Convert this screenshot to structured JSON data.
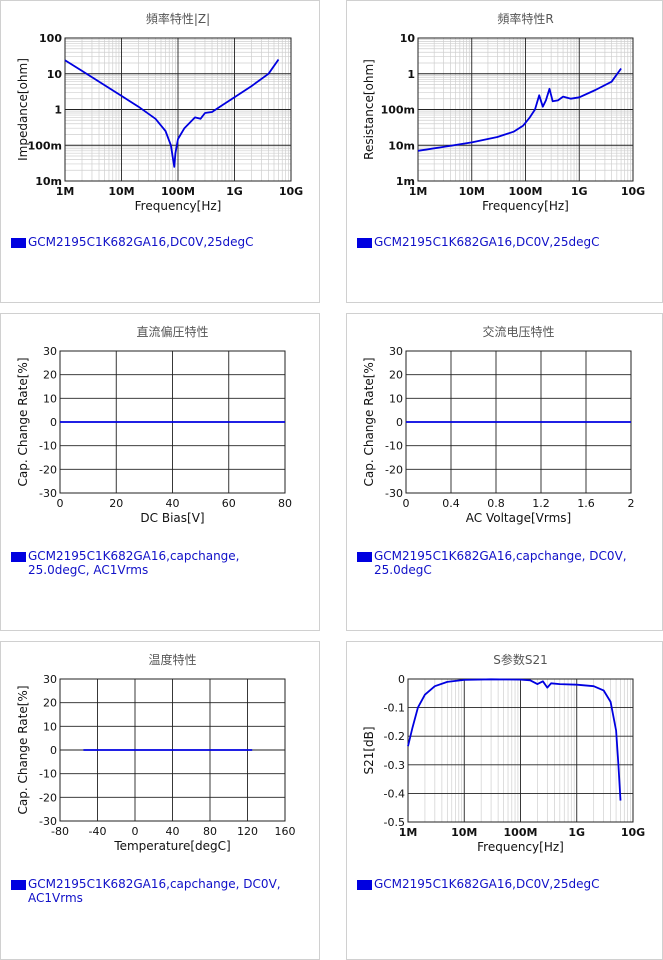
{
  "accent_color": "#0000e0",
  "chart_data": [
    {
      "id": "impedance",
      "type": "line",
      "title": "頻率特性|Z|",
      "xlabel": "Frequency[Hz]",
      "ylabel": "Impedance[ohm]",
      "x_scale": "log",
      "y_scale": "log",
      "xlim": [
        1000000,
        10000000000
      ],
      "ylim": [
        0.01,
        100
      ],
      "x_ticks": [
        "1M",
        "10M",
        "100M",
        "1G",
        "10G"
      ],
      "y_ticks": [
        "10m",
        "100m",
        "1",
        "10",
        "100"
      ],
      "grid": true,
      "series": [
        {
          "name": "GCM2195C1K682GA16,DC0V,25degC",
          "color": "#0000e0",
          "x": [
            1000000,
            2000000,
            5000000,
            10000000,
            20000000,
            40000000,
            60000000,
            75000000,
            82000000,
            86000000,
            90000000,
            100000000,
            130000000,
            200000000,
            250000000,
            300000000,
            400000000,
            600000000,
            1000000000,
            2000000000,
            4000000000,
            6000000000
          ],
          "y": [
            24,
            12,
            4.8,
            2.4,
            1.2,
            0.55,
            0.25,
            0.1,
            0.04,
            0.025,
            0.06,
            0.15,
            0.3,
            0.6,
            0.55,
            0.8,
            0.85,
            1.3,
            2.2,
            4.5,
            10,
            25
          ]
        }
      ]
    },
    {
      "id": "resistance",
      "type": "line",
      "title": "頻率特性R",
      "xlabel": "Frequency[Hz]",
      "ylabel": "Resistance[ohm]",
      "x_scale": "log",
      "y_scale": "log",
      "xlim": [
        1000000,
        10000000000
      ],
      "ylim": [
        0.001,
        10
      ],
      "x_ticks": [
        "1M",
        "10M",
        "100M",
        "1G",
        "10G"
      ],
      "y_ticks": [
        "1m",
        "10m",
        "100m",
        "1",
        "10"
      ],
      "grid": true,
      "series": [
        {
          "name": "GCM2195C1K682GA16,DC0V,25degC",
          "color": "#0000e0",
          "x": [
            1000000,
            3000000,
            10000000,
            30000000,
            60000000,
            90000000,
            120000000,
            150000000,
            180000000,
            210000000,
            240000000,
            280000000,
            320000000,
            400000000,
            500000000,
            700000000,
            1000000000,
            2000000000,
            4000000000,
            6000000000
          ],
          "y": [
            0.007,
            0.009,
            0.012,
            0.017,
            0.024,
            0.035,
            0.06,
            0.1,
            0.25,
            0.12,
            0.18,
            0.38,
            0.17,
            0.18,
            0.23,
            0.2,
            0.22,
            0.35,
            0.6,
            1.4
          ]
        }
      ]
    },
    {
      "id": "dc-bias",
      "type": "line",
      "title": "直流偏圧特性",
      "xlabel": "DC Bias[V]",
      "ylabel": "Cap. Change Rate[%]",
      "xlim": [
        0,
        80
      ],
      "ylim": [
        -30,
        30
      ],
      "x_ticks": [
        "0",
        "20",
        "40",
        "60",
        "80"
      ],
      "y_ticks": [
        "30",
        "20",
        "10",
        "0",
        "-10",
        "-20",
        "-30"
      ],
      "grid": true,
      "series": [
        {
          "name": "GCM2195C1K682GA16,capchange, 25.0degC, AC1Vrms",
          "color": "#0000e0",
          "x": [
            0,
            20,
            40,
            60,
            80
          ],
          "y": [
            0,
            0,
            0,
            0,
            0
          ]
        }
      ]
    },
    {
      "id": "ac-voltage",
      "type": "line",
      "title": "交流电压特性",
      "xlabel": "AC Voltage[Vrms]",
      "ylabel": "Cap. Change Rate[%]",
      "xlim": [
        0,
        2
      ],
      "ylim": [
        -30,
        30
      ],
      "x_ticks": [
        "0",
        "0.4",
        "0.8",
        "1.2",
        "1.6",
        "2"
      ],
      "y_ticks": [
        "30",
        "20",
        "10",
        "0",
        "-10",
        "-20",
        "-30"
      ],
      "grid": true,
      "series": [
        {
          "name": "GCM2195C1K682GA16,capchange, DC0V, 25.0degC",
          "color": "#0000e0",
          "x": [
            0,
            0.5,
            1,
            1.5,
            2
          ],
          "y": [
            0,
            0,
            0,
            0,
            0
          ]
        }
      ]
    },
    {
      "id": "temperature",
      "type": "line",
      "title": "温度特性",
      "xlabel": "Temperature[degC]",
      "ylabel": "Cap. Change Rate[%]",
      "xlim": [
        -80,
        160
      ],
      "ylim": [
        -30,
        30
      ],
      "x_ticks": [
        "-80",
        "-40",
        "0",
        "40",
        "80",
        "120",
        "160"
      ],
      "y_ticks": [
        "30",
        "20",
        "10",
        "0",
        "-10",
        "-20",
        "-30"
      ],
      "grid": true,
      "series": [
        {
          "name": "GCM2195C1K682GA16,capchange, DC0V, AC1Vrms",
          "color": "#0000e0",
          "x": [
            -55,
            -25,
            0,
            25,
            55,
            85,
            125
          ],
          "y": [
            0,
            0,
            0,
            0,
            0,
            0,
            0
          ]
        }
      ]
    },
    {
      "id": "s21",
      "type": "line",
      "title": "S参数S21",
      "xlabel": "Frequency[Hz]",
      "ylabel": "S21[dB]",
      "x_scale": "log",
      "xlim": [
        1000000,
        10000000000
      ],
      "ylim": [
        -0.5,
        0
      ],
      "x_ticks": [
        "1M",
        "10M",
        "100M",
        "1G",
        "10G"
      ],
      "y_ticks": [
        "0",
        "-0.1",
        "-0.2",
        "-0.3",
        "-0.4",
        "-0.5"
      ],
      "grid": true,
      "series": [
        {
          "name": "GCM2195C1K682GA16,DC0V,25degC",
          "color": "#0000e0",
          "x": [
            1000000,
            1200000,
            1500000,
            2000000,
            3000000,
            5000000,
            10000000,
            30000000,
            100000000,
            150000000,
            200000000,
            250000000,
            300000000,
            350000000,
            500000000,
            1000000000,
            2000000000,
            3000000000,
            4000000000,
            5000000000,
            5500000000,
            6000000000
          ],
          "y": [
            -0.235,
            -0.17,
            -0.1,
            -0.055,
            -0.025,
            -0.01,
            -0.003,
            -0.001,
            -0.002,
            -0.005,
            -0.018,
            -0.008,
            -0.03,
            -0.015,
            -0.018,
            -0.02,
            -0.025,
            -0.04,
            -0.08,
            -0.18,
            -0.3,
            -0.425
          ]
        }
      ]
    }
  ]
}
